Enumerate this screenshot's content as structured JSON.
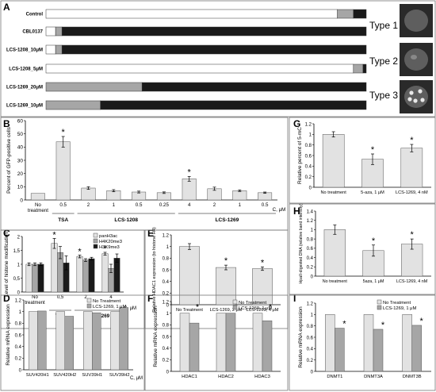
{
  "figure_colors": {
    "light": "#e2e2e2",
    "mid": "#a6a6a6",
    "dark": "#1a1a1a",
    "white": "#ffffff",
    "micro_bg": "#5e5e5e"
  },
  "chart_data": [
    {
      "panel": "A",
      "type": "bar",
      "orientation": "horizontal",
      "stacked": true,
      "categories": [
        "Control",
        "CBL0137",
        "LCS-1208_10μM",
        "LCS-1208_5μM",
        "LCS-1269_20μM",
        "LCS-1269_10μM"
      ],
      "series": [
        {
          "name": "Type 1",
          "values": [
            91,
            3,
            3,
            0,
            0,
            0
          ]
        },
        {
          "name": "Type 2",
          "values": [
            0,
            0,
            0,
            96,
            0,
            0
          ]
        },
        {
          "name": "Type 3",
          "values": [
            5,
            2,
            2,
            3,
            30,
            17
          ]
        },
        {
          "name": "Other",
          "values": [
            4,
            95,
            95,
            1,
            70,
            83
          ]
        }
      ],
      "legend_labels": [
        "Type 1",
        "Type 2",
        "Type 3"
      ]
    },
    {
      "panel": "B",
      "type": "bar",
      "ylabel": "Percent of GFP-positive cells",
      "ylim": [
        0,
        60
      ],
      "yticks": [
        "0",
        "10",
        "20",
        "30",
        "40",
        "50",
        "60"
      ],
      "categories": [
        "No\ntreatment",
        "0.5",
        "2",
        "1",
        "0.5",
        "0.25",
        "4",
        "2",
        "1",
        "0.5"
      ],
      "groups": [
        {
          "label": "TSA",
          "from": 1,
          "to": 1
        },
        {
          "label": "LCS-1208",
          "from": 2,
          "to": 5
        },
        {
          "label": "LCS-1269",
          "from": 6,
          "to": 9
        }
      ],
      "unit_label": "C, μM",
      "values": [
        5,
        44,
        9,
        7,
        6,
        5.5,
        16,
        8.5,
        7,
        5.5
      ],
      "errors": [
        0,
        4,
        1,
        0.8,
        0.7,
        0.6,
        1.8,
        1.2,
        0.6,
        0.5
      ],
      "stars": [
        1,
        6
      ]
    },
    {
      "panel": "C",
      "type": "bar",
      "ylabel": "Level of histone modification",
      "ylim": [
        0,
        2
      ],
      "yticks": [
        "0",
        "0,5",
        "1",
        "1,5",
        "2"
      ],
      "categories": [
        "No\ntreatment",
        "0,5",
        "2",
        "4"
      ],
      "groups": [
        {
          "label": "TSA",
          "from": 1,
          "to": 1
        },
        {
          "label": "LCS-1269",
          "from": 2,
          "to": 3
        }
      ],
      "unit_label": "C, μM",
      "series": [
        {
          "name": "panH3ac",
          "values": [
            1,
            1.75,
            1.28,
            1.38
          ],
          "errors": [
            0.05,
            0.18,
            0.05,
            0.05
          ]
        },
        {
          "name": "H4K20me3",
          "values": [
            1,
            1.42,
            1.15,
            0.85
          ],
          "errors": [
            0.05,
            0.22,
            0.05,
            0.15
          ]
        },
        {
          "name": "H3K9me3",
          "values": [
            1,
            1.05,
            1.2,
            1.22
          ],
          "errors": [
            0.05,
            0.25,
            0.05,
            0.15
          ]
        }
      ],
      "stars": [
        1,
        2,
        3
      ]
    },
    {
      "panel": "D",
      "type": "bar",
      "ylabel": "Relative mRNA expression",
      "ylim": [
        0,
        1.2
      ],
      "yticks": [
        "0",
        "0.2",
        "0.4",
        "0.6",
        "0.8",
        "1",
        "1.2"
      ],
      "categories": [
        "SUV420H1",
        "SUV420H2",
        "SUV39H1",
        "SUV39H2"
      ],
      "unit_label": "C, μM",
      "series": [
        {
          "name": "No Treatment",
          "values": [
            1,
            1,
            1,
            1
          ]
        },
        {
          "name": "LCS-1269, 1 μM",
          "values": [
            1.01,
            0.92,
            0.98,
            1.07
          ]
        }
      ]
    },
    {
      "panel": "E",
      "type": "bar",
      "ylabel": "Relative HDAC1 expression (to histone H4)",
      "ylim": [
        0,
        1.2
      ],
      "yticks": [
        "0",
        "0.2",
        "0.4",
        "0.6",
        "0.8",
        "1",
        "1.2"
      ],
      "categories": [
        "No Treatment",
        "LCS-1269, 2 μM",
        "LCS-1269, 4 μM"
      ],
      "values": [
        1,
        0.64,
        0.62
      ],
      "errors": [
        0.05,
        0.04,
        0.03
      ],
      "stars": [
        1,
        2
      ]
    },
    {
      "panel": "F",
      "type": "bar",
      "ylabel": "Relative mRNA expression",
      "ylim": [
        0,
        1.2
      ],
      "yticks": [
        "0",
        "0.2",
        "0.4",
        "0.6",
        "0.8",
        "1",
        "1.2"
      ],
      "categories": [
        "HDAC1",
        "HDAC2",
        "HDAC3"
      ],
      "series": [
        {
          "name": "No Treatment",
          "values": [
            1,
            1,
            1
          ]
        },
        {
          "name": "LCS-1269, 1 μM",
          "values": [
            0.83,
            1,
            0.87
          ]
        }
      ],
      "stars": [
        0,
        2
      ]
    },
    {
      "panel": "G",
      "type": "bar",
      "ylabel": "Relative percent of 5-mC",
      "ylim": [
        0,
        1.2
      ],
      "yticks": [
        "0",
        "0.2",
        "0.4",
        "0.6",
        "0.8",
        "1",
        "1.2"
      ],
      "categories": [
        "No treatment",
        "5-aza, 1 μM",
        "LCS-1269, 4 nM"
      ],
      "values": [
        1,
        0.53,
        0.74
      ],
      "errors": [
        0.05,
        0.1,
        0.07
      ],
      "stars": [
        1,
        2
      ]
    },
    {
      "panel": "H",
      "type": "bar",
      "ylabel": "HpaII-digested DNA (relative band intensity)",
      "ylim": [
        0,
        1.4
      ],
      "yticks": [
        "0",
        "0.2",
        "0.4",
        "0.6",
        "0.8",
        "1",
        "1.2",
        "1.4"
      ],
      "categories": [
        "No treatment",
        "5aza, 1 μM",
        "LCS-1269, 4 nM"
      ],
      "values": [
        1,
        0.55,
        0.69
      ],
      "errors": [
        0.1,
        0.12,
        0.11
      ],
      "stars": [
        1,
        2
      ]
    },
    {
      "panel": "I",
      "type": "bar",
      "ylabel": "Relative mRNA expression",
      "ylim": [
        0,
        1.2
      ],
      "yticks": [
        "0",
        "0.2",
        "0.4",
        "0.6",
        "0.8",
        "1",
        "1.2"
      ],
      "categories": [
        "DNMT1",
        "DNMT3A",
        "DNMT3B"
      ],
      "series": [
        {
          "name": "No Treatment",
          "values": [
            1,
            1,
            1
          ]
        },
        {
          "name": "LCS-1269, 1 μM",
          "values": [
            0.76,
            0.74,
            0.81
          ]
        }
      ],
      "stars": [
        0,
        1,
        2
      ]
    }
  ]
}
